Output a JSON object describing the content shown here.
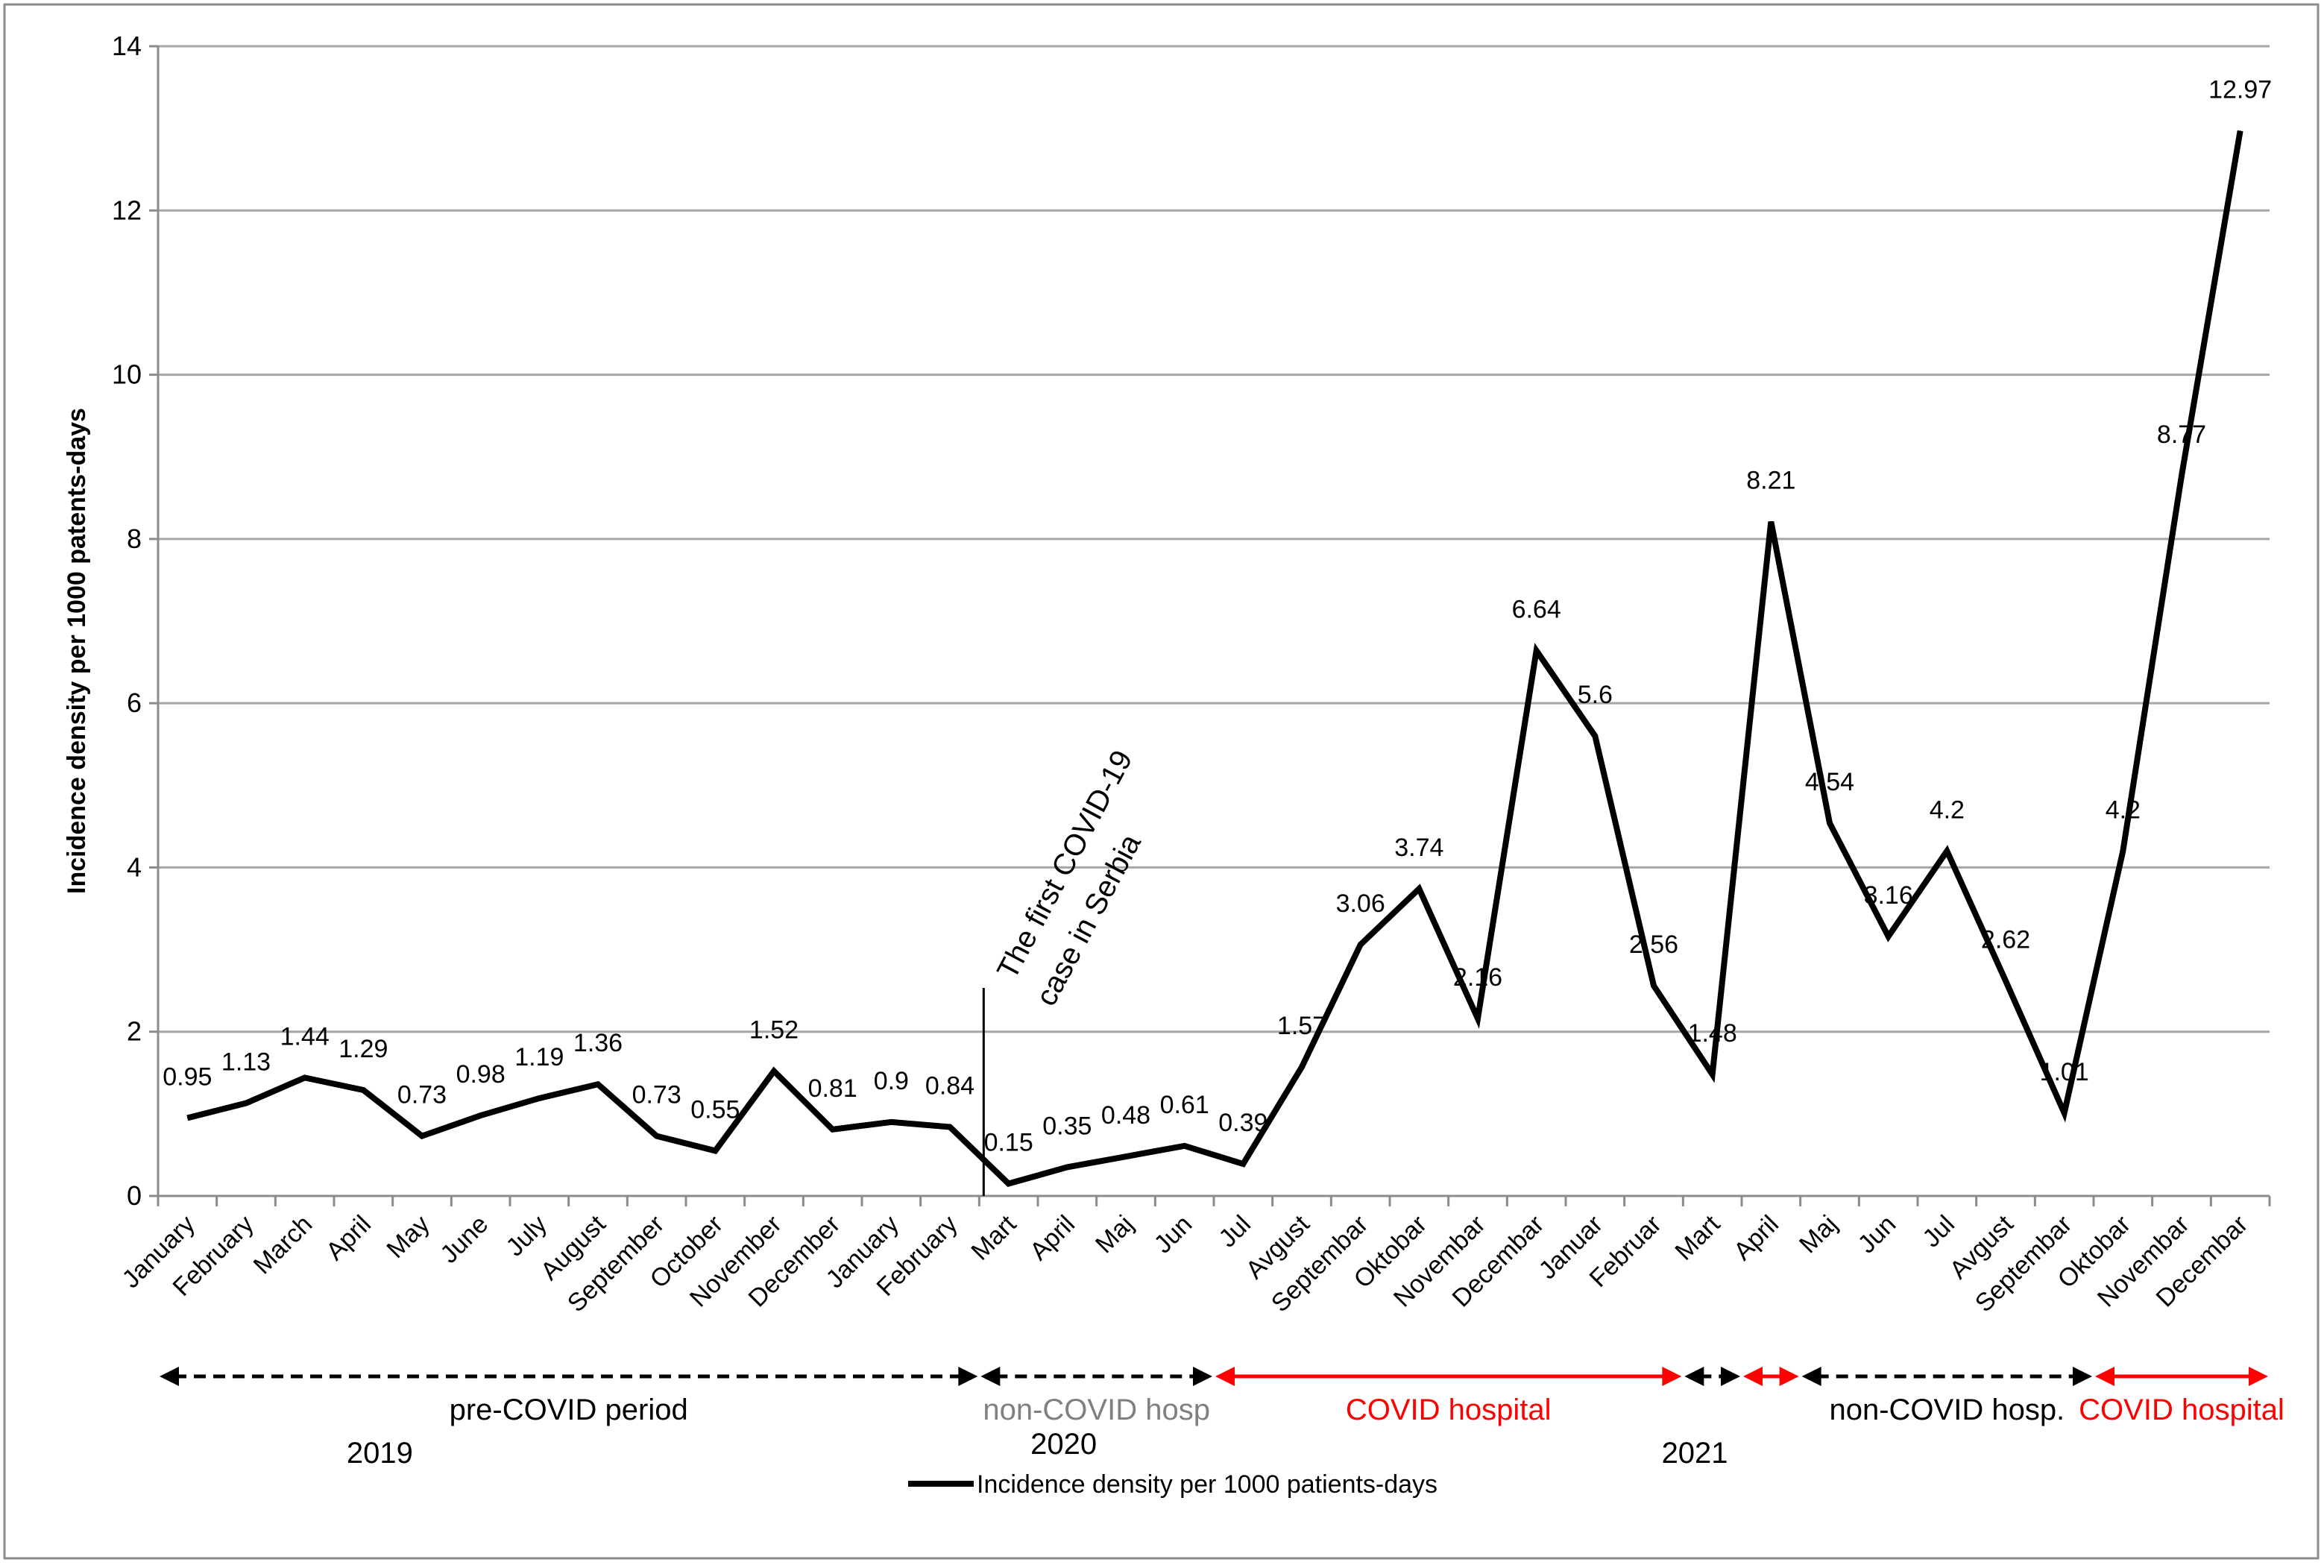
{
  "chart_data": {
    "type": "line",
    "title": "",
    "xlabel": "",
    "ylabel": "Incidence density per 1000 patents-days",
    "ylim": [
      0,
      14
    ],
    "yticks": [
      "0",
      "2",
      "4",
      "6",
      "8",
      "10",
      "12",
      "14"
    ],
    "grid": true,
    "legend_position": "bottom-center",
    "categories": [
      "January",
      "February",
      "March",
      "April",
      "May",
      "June",
      "July",
      "August",
      "September",
      "October",
      "November",
      "December",
      "January",
      "February",
      "Mart",
      "April",
      "Maj",
      "Jun",
      "Jul",
      "Avgust",
      "Septembar",
      "Oktobar",
      "Novembar",
      "Decembar",
      "Januar",
      "Februar",
      "Mart",
      "April",
      "Maj",
      "Jun",
      "Jul",
      "Avgust",
      "Septembar",
      "Oktobar",
      "Novembar",
      "Decembar"
    ],
    "series": [
      {
        "name": "Incidence density per 1000 patients-days",
        "color": "#000000",
        "values": [
          0.95,
          1.13,
          1.44,
          1.29,
          0.73,
          0.98,
          1.19,
          1.36,
          0.73,
          0.55,
          1.52,
          0.81,
          0.9,
          0.84,
          0.15,
          0.35,
          0.48,
          0.61,
          0.39,
          1.57,
          3.06,
          3.74,
          2.16,
          6.64,
          5.6,
          2.56,
          1.48,
          8.21,
          4.54,
          3.16,
          4.2,
          2.62,
          1.01,
          4.2,
          8.77,
          12.97
        ],
        "labels": [
          "0.95",
          "1.13",
          "1.44",
          "1.29",
          "0.73",
          "0.98",
          "1.19",
          "1.36",
          "0.73",
          "0.55",
          "1.52",
          "0.81",
          "0.9",
          "0.84",
          "0.15",
          "0.35",
          "0.48",
          "0.61",
          "0.39",
          "1.57",
          "3.06",
          "3.74",
          "2.16",
          "6.64",
          "5.6",
          "2.56",
          "1.48",
          "8.21",
          "4.54",
          "3.16",
          "4.2",
          "2.62",
          "1.01",
          "4.2",
          "8.77",
          "12.97"
        ]
      }
    ],
    "annotations": {
      "first_case_line": "The first COVID-19",
      "first_case_line2": "case in Serbia",
      "first_case_before_index": 14
    },
    "periods": [
      {
        "label": "pre-COVID period",
        "start": 0,
        "end": 13,
        "color": "#000000",
        "dashed": true
      },
      {
        "label": "non-COVID hosp",
        "start": 14,
        "end": 17,
        "color": "#808080",
        "dashed": true
      },
      {
        "label": "COVID hospital",
        "start": 18,
        "end": 25,
        "color": "#ff0000",
        "dashed": false
      },
      {
        "label": "",
        "start": 26,
        "end": 26,
        "color": "#000000",
        "dashed": true
      },
      {
        "label": "",
        "start": 27,
        "end": 27,
        "color": "#ff0000",
        "dashed": false
      },
      {
        "label": "non-COVID hosp.",
        "start": 28,
        "end": 32,
        "color": "#000000",
        "dashed": true
      },
      {
        "label": "COVID hospital",
        "start": 33,
        "end": 35,
        "color": "#ff0000",
        "dashed": false
      }
    ],
    "years": [
      "2019",
      "2020",
      "2021"
    ],
    "colors": {
      "line": "#000000",
      "grid": "#a6a6a6",
      "covid": "#ff0000",
      "noncovid_2020": "#808080"
    }
  }
}
